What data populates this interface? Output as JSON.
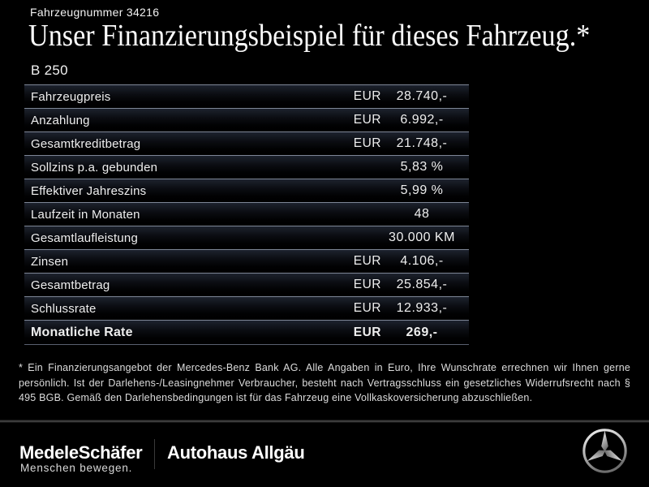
{
  "header": {
    "vehicle_number": "Fahrzeugnummer 34216",
    "title": "Unser Finanzierungsbeispiel für dieses Fahrzeug.*",
    "model": "B 250"
  },
  "table": {
    "rows": [
      {
        "label": "Fahrzeugpreis",
        "currency": "EUR",
        "value": "28.740,-",
        "bold": false
      },
      {
        "label": "Anzahlung",
        "currency": "EUR",
        "value": "6.992,-",
        "bold": false
      },
      {
        "label": "Gesamtkreditbetrag",
        "currency": "EUR",
        "value": "21.748,-",
        "bold": false
      },
      {
        "label": "Sollzins p.a. gebunden",
        "currency": "",
        "value": "5,83 %",
        "bold": false
      },
      {
        "label": "Effektiver Jahreszins",
        "currency": "",
        "value": "5,99 %",
        "bold": false
      },
      {
        "label": "Laufzeit in Monaten",
        "currency": "",
        "value": "48",
        "bold": false
      },
      {
        "label": "Gesamtlaufleistung",
        "currency": "",
        "value": "30.000 KM",
        "bold": false
      },
      {
        "label": "Zinsen",
        "currency": "EUR",
        "value": "4.106,-",
        "bold": false
      },
      {
        "label": "Gesamtbetrag",
        "currency": "EUR",
        "value": "25.854,-",
        "bold": false
      },
      {
        "label": "Schlussrate",
        "currency": "EUR",
        "value": "12.933,-",
        "bold": false
      },
      {
        "label": "Monatliche Rate",
        "currency": "EUR",
        "value": "269,-",
        "bold": true
      }
    ]
  },
  "footnote": "* Ein Finanzierungsangebot der Mercedes-Benz Bank AG. Alle Angaben in Euro, Ihre Wunschrate errechnen wir Ihnen gerne persönlich. Ist der Darlehens-/Leasingnehmer Verbraucher, besteht nach Vertragsschluss ein gesetzliches Widerrufsrecht nach § 495 BGB. Gemäß den Darlehensbedingungen ist für das Fahrzeug eine Vollkaskoversicherung abzuschließen.",
  "footer": {
    "dealer1_name": "MedeleSchäfer",
    "dealer1_tagline": "Menschen bewegen.",
    "dealer2_name": "Autohaus Allgäu",
    "brand_icon": "mercedes-star-icon"
  },
  "colors": {
    "background": "#000000",
    "text": "#f0f0f0",
    "row_separator": "#7e8696",
    "row_gradient_top": "#1d222d",
    "footer_divider": "#3c3c3c",
    "star_silver_light": "#ededed",
    "star_silver_dark": "#6e6e6e"
  }
}
